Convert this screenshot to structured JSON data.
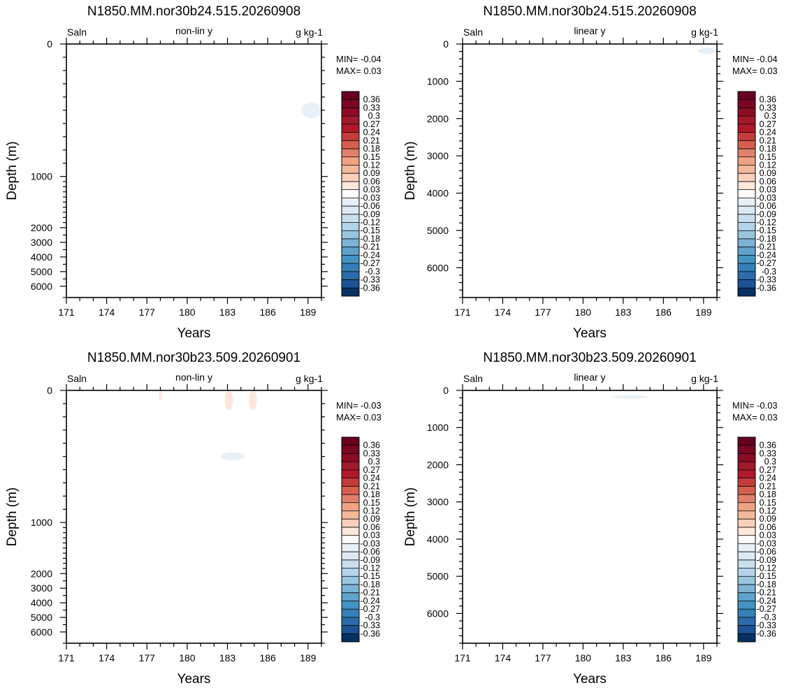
{
  "chart_data": [
    {
      "type": "heatmap",
      "title": "N1850.MM.nor30b24.515.20260908",
      "variable": "Saln",
      "mode": "non-lin y",
      "units": "g kg-1",
      "xlabel": "Years",
      "ylabel": "Depth (m)",
      "y_scale": "non-linear",
      "xlim": [
        171,
        190
      ],
      "ylim": [
        6500,
        0
      ],
      "x_ticks": [
        "171",
        "174",
        "177",
        "180",
        "183",
        "186",
        "189"
      ],
      "y_ticks": [
        "0",
        "1000",
        "2000",
        "3000",
        "4000",
        "5000",
        "6000"
      ],
      "min_label": "MIN= -0.04",
      "max_label": "MAX=  0.03",
      "features": [
        {
          "x": [
            188.5,
            190
          ],
          "depth": [
            440,
            560
          ],
          "value": -0.03
        }
      ]
    },
    {
      "type": "heatmap",
      "title": "N1850.MM.nor30b24.515.20260908",
      "variable": "Saln",
      "mode": "linear y",
      "units": "g kg-1",
      "xlabel": "Years",
      "ylabel": "Depth (m)",
      "y_scale": "linear",
      "xlim": [
        171,
        190
      ],
      "ylim": [
        6800,
        0
      ],
      "x_ticks": [
        "171",
        "174",
        "177",
        "180",
        "183",
        "186",
        "189"
      ],
      "y_ticks": [
        "0",
        "1000",
        "2000",
        "3000",
        "4000",
        "5000",
        "6000"
      ],
      "min_label": "MIN= -0.04",
      "max_label": "MAX=  0.03",
      "features": [
        {
          "x": [
            188.6,
            190
          ],
          "depth": [
            100,
            270
          ],
          "value": -0.03
        }
      ]
    },
    {
      "type": "heatmap",
      "title": "N1850.MM.nor30b23.509.20260901",
      "variable": "Saln",
      "mode": "non-lin y",
      "units": "g kg-1",
      "xlabel": "Years",
      "ylabel": "Depth (m)",
      "y_scale": "non-linear",
      "xlim": [
        171,
        190
      ],
      "ylim": [
        6500,
        0
      ],
      "x_ticks": [
        "171",
        "174",
        "177",
        "180",
        "183",
        "186",
        "189"
      ],
      "y_ticks": [
        "0",
        "1000",
        "2000",
        "3000",
        "4000",
        "5000",
        "6000"
      ],
      "min_label": "MIN= -0.03",
      "max_label": "MAX=  0.03",
      "features": [
        {
          "x": [
            182.8,
            183.4
          ],
          "depth": [
            0,
            150
          ],
          "value": 0.03
        },
        {
          "x": [
            184.6,
            185.2
          ],
          "depth": [
            0,
            150
          ],
          "value": 0.03
        },
        {
          "x": [
            177.9,
            178.1
          ],
          "depth": [
            0,
            80
          ],
          "value": 0.03
        },
        {
          "x": [
            182.5,
            184.3
          ],
          "depth": [
            470,
            530
          ],
          "value": -0.03
        }
      ]
    },
    {
      "type": "heatmap",
      "title": "N1850.MM.nor30b23.509.20260901",
      "variable": "Saln",
      "mode": "linear y",
      "units": "g kg-1",
      "xlabel": "Years",
      "ylabel": "Depth (m)",
      "y_scale": "linear",
      "xlim": [
        171,
        190
      ],
      "ylim": [
        6800,
        0
      ],
      "x_ticks": [
        "171",
        "174",
        "177",
        "180",
        "183",
        "186",
        "189"
      ],
      "y_ticks": [
        "0",
        "1000",
        "2000",
        "3000",
        "4000",
        "5000",
        "6000"
      ],
      "min_label": "MIN= -0.03",
      "max_label": "MAX=  0.03",
      "features": [
        {
          "x": [
            182.2,
            184.8
          ],
          "depth": [
            130,
            220
          ],
          "value": -0.03
        }
      ]
    }
  ],
  "colorbar": {
    "labels": [
      "0.36",
      "0.33",
      "0.3",
      "0.27",
      "0.24",
      "0.21",
      "0.18",
      "0.15",
      "0.12",
      "0.09",
      "0.06",
      "0.03",
      "-0.03",
      "-0.06",
      "-0.09",
      "-0.12",
      "-0.15",
      "-0.18",
      "-0.21",
      "-0.24",
      "-0.27",
      "-0.3",
      "-0.33",
      "-0.36"
    ],
    "colors": [
      "#67001f",
      "#7a0623",
      "#8c0c26",
      "#a11a2c",
      "#b2182b",
      "#c43c3c",
      "#d6604d",
      "#e0806a",
      "#f0a382",
      "#f4b89b",
      "#fbd1bb",
      "#fde6da",
      "#ffffff",
      "#e8f1f7",
      "#dce9f3",
      "#c9dfee",
      "#b2d3e8",
      "#98c6df",
      "#7cb4d6",
      "#5fa2cc",
      "#4393c3",
      "#347fb8",
      "#2b6cab",
      "#1d5396",
      "#053061"
    ]
  }
}
